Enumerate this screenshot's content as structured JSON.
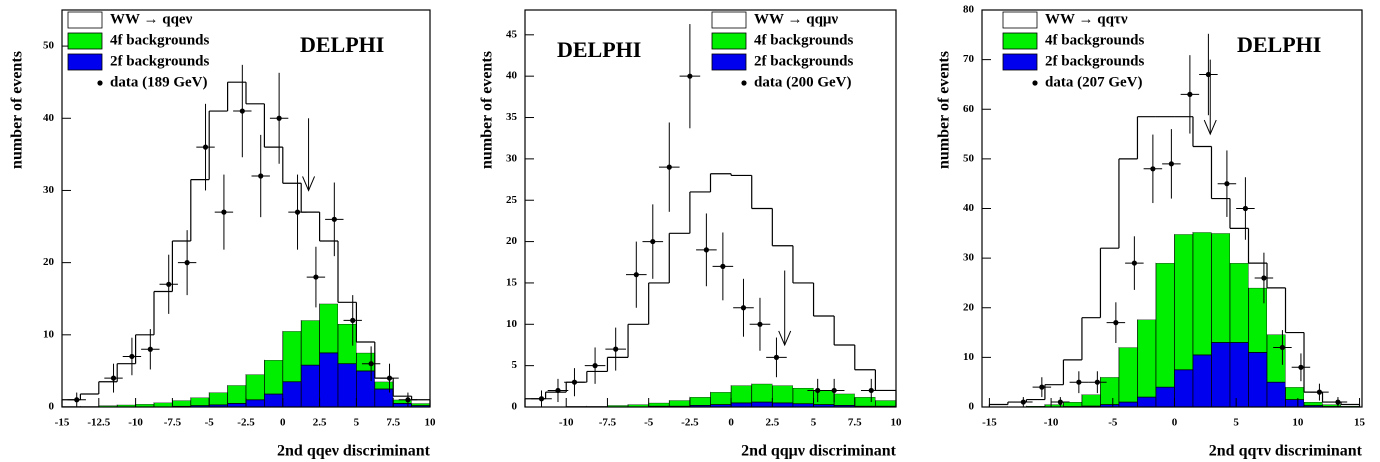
{
  "chart_data": [
    {
      "type": "histogram",
      "annotation": "DELPHI",
      "xlabel": "2nd qqeν discriminant",
      "ylabel": "number of events",
      "bins": [
        -15,
        -13.75,
        -12.5,
        -11.25,
        -10,
        -8.75,
        -7.5,
        -6.25,
        -5,
        -3.75,
        -2.5,
        -1.25,
        0,
        1.25,
        2.5,
        3.75,
        5,
        6.25,
        7.5,
        8.75,
        10
      ],
      "series": [
        {
          "name": "WW → qqeν",
          "color": "#ffffff",
          "values": [
            0.9,
            1.7,
            3.3,
            5.7,
            9.6,
            15.4,
            22.1,
            30.2,
            39,
            42,
            37.5,
            29.5,
            20.5,
            15,
            8.7,
            3,
            1.5,
            0.5,
            0.5,
            0.5
          ]
        },
        {
          "name": "4f backgrounds",
          "color": "#00ee00",
          "values": [
            0.1,
            0.1,
            0.2,
            0.3,
            0.4,
            0.6,
            0.8,
            1.1,
            1.7,
            2.5,
            3.5,
            4.7,
            7,
            6.2,
            6.8,
            5.5,
            2.5,
            1,
            0.5,
            0.3
          ]
        },
        {
          "name": "2f backgrounds",
          "color": "#0000ee",
          "values": [
            0,
            0,
            0,
            0,
            0,
            0,
            0.1,
            0.2,
            0.3,
            0.5,
            1,
            1.8,
            3.5,
            5.8,
            7.5,
            6,
            5,
            2.5,
            0.5,
            0.2
          ]
        }
      ],
      "data": {
        "name": "data (189 GeV)",
        "x_error": 0.625,
        "x": [
          -14,
          -11.5,
          -10.25,
          -9,
          -7.75,
          -6.5,
          -5.25,
          -4,
          -2.75,
          -1.5,
          -0.25,
          1,
          2.25,
          3.5,
          4.75,
          6,
          7.25,
          8.5
        ],
        "values": [
          1,
          4,
          7,
          8,
          17,
          20,
          36,
          27,
          41,
          32,
          40,
          27,
          18,
          26,
          12,
          6,
          4,
          1
        ],
        "errors": [
          1,
          2,
          2.6,
          2.8,
          4.1,
          4.5,
          6,
          5.2,
          6.4,
          5.7,
          6.3,
          5.2,
          4.2,
          5.1,
          3.5,
          2.4,
          2,
          1
        ]
      },
      "arrow": {
        "x": 1.75,
        "y": [
          40,
          30
        ]
      },
      "xlim": [
        -15,
        10
      ],
      "ylim": [
        0,
        55
      ],
      "xticks": [
        -15,
        -12.5,
        -10,
        -7.5,
        -5,
        -2.5,
        0,
        2.5,
        5,
        7.5,
        10
      ],
      "yticks": [
        0,
        10,
        20,
        30,
        40,
        50
      ]
    },
    {
      "type": "histogram",
      "annotation": "DELPHI",
      "xlabel": "2nd qqμν discriminant",
      "ylabel": "number of events",
      "bins": [
        -12.5,
        -11.25,
        -10,
        -8.75,
        -7.5,
        -6.25,
        -5,
        -3.75,
        -2.5,
        -1.25,
        0,
        1.25,
        2.5,
        3.75,
        5,
        6.25,
        7.5,
        8.75,
        10
      ],
      "series": [
        {
          "name": "WW → qqμν",
          "color": "#ffffff",
          "values": [
            1,
            1.8,
            2.9,
            4.2,
            5.8,
            9.7,
            14.5,
            20.2,
            24.8,
            26.4,
            25.4,
            21.2,
            16.9,
            12.7,
            9,
            5.9,
            3.3,
            1.2
          ]
        },
        {
          "name": "4f backgrounds",
          "color": "#00ee00",
          "values": [
            0,
            0,
            0.1,
            0.1,
            0.2,
            0.3,
            0.4,
            0.7,
            1,
            1.5,
            2.1,
            2.2,
            2.1,
            1.9,
            1.7,
            1.4,
            1.1,
            0.7
          ]
        },
        {
          "name": "2f backgrounds",
          "color": "#0000ee",
          "values": [
            0,
            0,
            0,
            0,
            0,
            0,
            0.1,
            0.1,
            0.2,
            0.3,
            0.5,
            0.6,
            0.5,
            0.4,
            0.3,
            0.2,
            0.1,
            0.1
          ]
        }
      ],
      "data": {
        "name": "data (200 GeV)",
        "x_error": 0.625,
        "x": [
          -11.5,
          -10.5,
          -9.5,
          -8.25,
          -7,
          -5.75,
          -4.75,
          -3.75,
          -2.5,
          -1.5,
          -0.5,
          0.75,
          1.75,
          2.75,
          5.25,
          6.25,
          8.5
        ],
        "values": [
          1,
          2,
          3,
          5,
          7,
          16,
          20,
          29,
          40,
          19,
          17,
          12,
          10,
          6,
          2,
          2,
          2
        ],
        "errors": [
          1,
          1.4,
          1.7,
          2.2,
          2.6,
          4,
          4.5,
          5.4,
          6.3,
          4.4,
          4.1,
          3.5,
          3.2,
          2.4,
          1.4,
          1.4,
          1.4
        ]
      },
      "arrow": {
        "x": 3.25,
        "y": [
          16.5,
          7.5
        ]
      },
      "xlim": [
        -12.5,
        10
      ],
      "ylim": [
        0,
        48
      ],
      "xticks": [
        -10,
        -7.5,
        -5,
        -2.5,
        0,
        2.5,
        5,
        7.5,
        10
      ],
      "yticks": [
        0,
        5,
        10,
        15,
        20,
        25,
        30,
        35,
        40,
        45
      ]
    },
    {
      "type": "histogram",
      "annotation": "DELPHI",
      "xlabel": "2nd qqτν discriminant",
      "ylabel": "number of events",
      "bins": [
        -15,
        -13.5,
        -12,
        -10.5,
        -9,
        -7.5,
        -6,
        -4.5,
        -3,
        -1.5,
        0,
        1.5,
        3,
        4.5,
        6,
        7.5,
        9,
        10.5,
        12,
        13.5,
        15
      ],
      "series": [
        {
          "name": "WW → qqτν",
          "color": "#ffffff",
          "values": [
            0.5,
            0.9,
            1.3,
            4,
            8.5,
            15.5,
            26,
            38,
            40.9,
            29.5,
            23.7,
            17.3,
            7,
            7,
            5,
            9.4,
            11,
            2,
            0.5,
            0.3
          ]
        },
        {
          "name": "4f backgrounds",
          "color": "#00ee00",
          "values": [
            0,
            0.1,
            0.2,
            0.5,
            0.9,
            2.3,
            5.5,
            11,
            15.6,
            25,
            27.3,
            24.7,
            22,
            16,
            13,
            9.6,
            2.5,
            0.7,
            0.4,
            0.2
          ]
        },
        {
          "name": "2f backgrounds",
          "color": "#0000ee",
          "values": [
            0,
            0,
            0,
            0,
            0.1,
            0.2,
            0.5,
            1,
            2,
            4,
            7.5,
            10.5,
            13,
            13,
            11,
            5,
            1.5,
            0.3,
            0.1,
            0
          ]
        }
      ],
      "data": {
        "name": "data (207 GeV)",
        "x_error": 0.75,
        "x": [
          -12.25,
          -10.75,
          -9.25,
          -7.75,
          -6.25,
          -4.75,
          -3.25,
          -1.75,
          -0.25,
          1.25,
          2.75,
          4.25,
          5.75,
          7.25,
          8.75,
          10.25,
          11.75,
          13.25
        ],
        "values": [
          1,
          4,
          1,
          5,
          5,
          17,
          29,
          48,
          49,
          63,
          67,
          45,
          40,
          26,
          12,
          8,
          3,
          1
        ],
        "errors": [
          1,
          2,
          1,
          2.2,
          2.2,
          4.1,
          5.4,
          6.9,
          7,
          7.9,
          8.2,
          6.7,
          6.3,
          5.1,
          3.5,
          2.8,
          1.7,
          1
        ]
      },
      "arrow": {
        "x": 2.9,
        "y": [
          70,
          55
        ]
      },
      "xlim": [
        -15.6,
        15.2
      ],
      "ylim": [
        0,
        80
      ],
      "xticks": [
        -15,
        -10,
        -5,
        0,
        5,
        10,
        15
      ],
      "yticks": [
        0,
        10,
        20,
        30,
        40,
        50,
        60,
        70,
        80
      ]
    }
  ]
}
